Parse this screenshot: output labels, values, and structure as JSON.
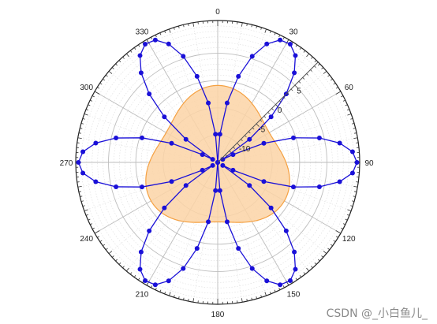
{
  "chart_data": {
    "type": "polar",
    "angle_ticks": [
      "0",
      "30",
      "60",
      "90",
      "120",
      "150",
      "180",
      "210",
      "240",
      "270",
      "300",
      "330"
    ],
    "radial_ticks": [
      -10,
      -5,
      0,
      5
    ],
    "rlim": [
      -15,
      11
    ],
    "theta_direction": "clockwise",
    "theta_zero": "top",
    "grid": true,
    "series": [
      {
        "type": "area",
        "equation_form": "r = A + B*cos(3*theta)",
        "A": -2.5,
        "B": 1.6,
        "color": "#f5a142",
        "fill": "#fcd3a6"
      },
      {
        "type": "line+markers",
        "equation_form": "r = C*|sin(3*theta)| - 16, points every 4.5 deg",
        "C": 26.5,
        "color": "#1a10d8"
      }
    ]
  },
  "watermark": "CSDN @_小白鱼儿_",
  "colors": {
    "line": "#1a10d8",
    "area_fill": "#fcd3a6",
    "area_edge": "#f5a142",
    "radial_axis": "#555555"
  }
}
